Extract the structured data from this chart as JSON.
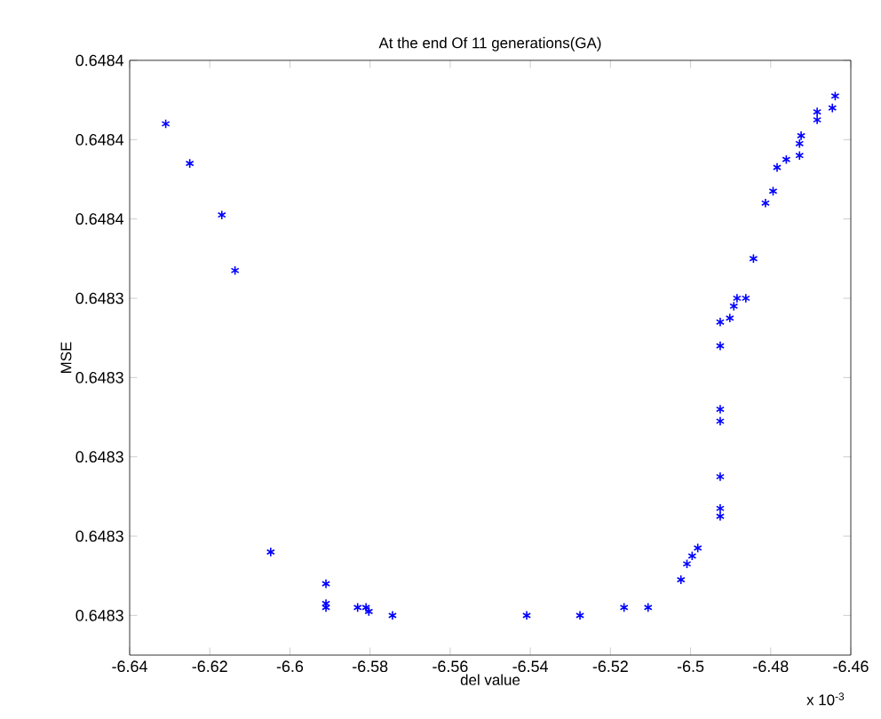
{
  "chart_data": {
    "type": "scatter",
    "title": "At the end Of 11 generations(GA)",
    "xlabel": "del value",
    "ylabel": "MSE",
    "annotations": [
      "x 10$^{-3}$"
    ],
    "color": "#0000ff",
    "marker": "cross",
    "grid": false,
    "xlim": [
      -6.64,
      -6.46
    ],
    "xticks": [
      -6.64,
      -6.62,
      -6.6,
      -6.58,
      -6.56,
      -6.54,
      -6.52,
      -6.5,
      -6.48,
      -6.46
    ],
    "ylim": [
      0.64825,
      0.6484
    ],
    "yticks": [
      {
        "value": 0.64826,
        "label": "0.6483"
      },
      {
        "value": 0.64828,
        "label": "0.6483"
      },
      {
        "value": 0.6483,
        "label": "0.6483"
      },
      {
        "value": 0.64832,
        "label": "0.6483"
      },
      {
        "value": 0.64834,
        "label": "0.6483"
      },
      {
        "value": 0.64836,
        "label": "0.6484"
      },
      {
        "value": 0.64838,
        "label": "0.6484"
      },
      {
        "value": 0.6484,
        "label": "0.6484"
      }
    ],
    "x": [
      -6.631,
      -6.625,
      -6.617,
      -6.6137,
      -6.6048,
      -6.591,
      -6.591,
      -6.591,
      -6.5831,
      -6.581,
      -6.5803,
      -6.5744,
      -6.5409,
      -6.5276,
      -6.5166,
      -6.5106,
      -6.5024,
      -6.5009,
      -6.4996,
      -6.4982,
      -6.4926,
      -6.4926,
      -6.4926,
      -6.4926,
      -6.4926,
      -6.4926,
      -6.4926,
      -6.4902,
      -6.4892,
      -6.4884,
      -6.4862,
      -6.4843,
      -6.4813,
      -6.4794,
      -6.4784,
      -6.4761,
      -6.4728,
      -6.4728,
      -6.4724,
      -6.4684,
      -6.4684,
      -6.4646,
      -6.4639
    ],
    "values": [
      0.648384,
      0.648374,
      0.648361,
      0.648347,
      0.648276,
      0.648268,
      0.648263,
      0.648262,
      0.648262,
      0.648262,
      0.648261,
      0.64826,
      0.64826,
      0.64826,
      0.648262,
      0.648262,
      0.648269,
      0.648273,
      0.648275,
      0.648277,
      0.648285,
      0.648287,
      0.648295,
      0.648309,
      0.648312,
      0.648328,
      0.648334,
      0.648335,
      0.648338,
      0.64834,
      0.64834,
      0.64835,
      0.648364,
      0.648367,
      0.648373,
      0.648375,
      0.648376,
      0.648379,
      0.648381,
      0.648385,
      0.648387,
      0.648388,
      0.648391
    ]
  }
}
